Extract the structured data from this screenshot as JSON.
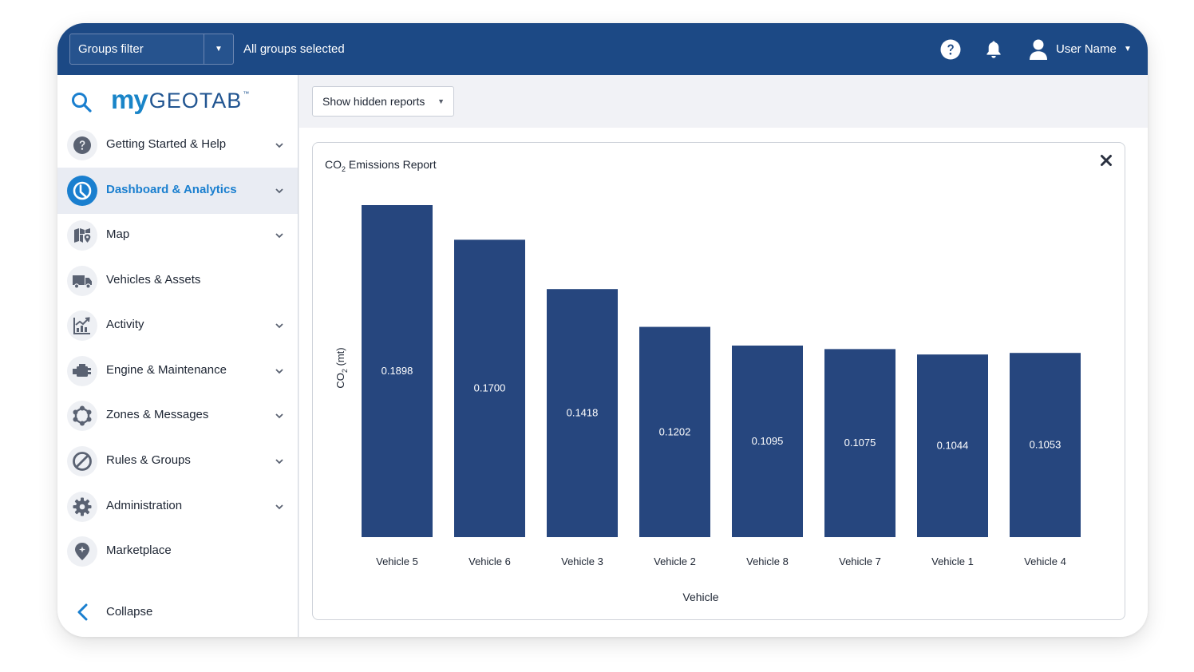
{
  "topbar": {
    "groups_filter_label": "Groups filter",
    "groups_selected_text": "All groups selected",
    "user_name": "User Name",
    "background_color": "#1c4985"
  },
  "sidebar": {
    "logo": {
      "my": "my",
      "brand": "GEOTAB",
      "tm": "™"
    },
    "items": [
      {
        "label": "Getting Started & Help",
        "icon": "help-circle-icon",
        "has_chevron": true,
        "active": false
      },
      {
        "label": "Dashboard & Analytics",
        "icon": "dashboard-icon",
        "has_chevron": true,
        "active": true
      },
      {
        "label": "Map",
        "icon": "map-icon",
        "has_chevron": true,
        "active": false
      },
      {
        "label": "Vehicles & Assets",
        "icon": "truck-icon",
        "has_chevron": false,
        "active": false
      },
      {
        "label": "Activity",
        "icon": "activity-chart-icon",
        "has_chevron": true,
        "active": false
      },
      {
        "label": "Engine & Maintenance",
        "icon": "engine-icon",
        "has_chevron": true,
        "active": false
      },
      {
        "label": "Zones & Messages",
        "icon": "zones-icon",
        "has_chevron": true,
        "active": false
      },
      {
        "label": "Rules & Groups",
        "icon": "rules-icon",
        "has_chevron": true,
        "active": false
      },
      {
        "label": "Administration",
        "icon": "gear-icon",
        "has_chevron": true,
        "active": false
      },
      {
        "label": "Marketplace",
        "icon": "marketplace-icon",
        "has_chevron": false,
        "active": false
      }
    ],
    "collapse_label": "Collapse",
    "active_color": "#1a7fcf"
  },
  "main": {
    "show_hidden_reports_label": "Show hidden reports"
  },
  "report": {
    "title_prefix": "CO",
    "title_subscript": "2",
    "title_suffix": " Emissions Report"
  },
  "chart_data": {
    "type": "bar",
    "title": "CO2 Emissions Report",
    "xlabel": "Vehicle",
    "ylabel": "CO2 (mt)",
    "ylabel_parts": {
      "prefix": "CO",
      "subscript": "2",
      "suffix": " (mt)"
    },
    "categories": [
      "Vehicle 5",
      "Vehicle 6",
      "Vehicle 3",
      "Vehicle 2",
      "Vehicle 8",
      "Vehicle 7",
      "Vehicle 1",
      "Vehicle 4"
    ],
    "values": [
      0.1898,
      0.17,
      0.1418,
      0.1202,
      0.1095,
      0.1075,
      0.1044,
      0.1053
    ],
    "value_labels": [
      "0.1898",
      "0.1700",
      "0.1418",
      "0.1202",
      "0.1095",
      "0.1075",
      "0.1044",
      "0.1053"
    ],
    "bar_color": "#26467e",
    "grid": false,
    "legend": "none"
  }
}
